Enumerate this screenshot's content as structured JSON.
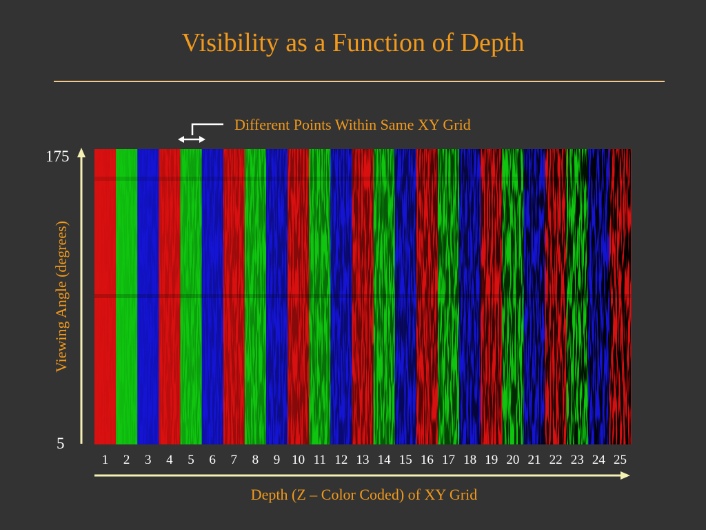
{
  "slide": {
    "title": "Visibility as a Function of Depth",
    "annotation": "Different Points Within Same XY Grid"
  },
  "chart_data": {
    "type": "heatmap",
    "title": "Visibility as a Function of Depth",
    "xlabel": "Depth (Z – Color Coded) of XY Grid",
    "ylabel": "Viewing Angle (degrees)",
    "y_tick_labels": [
      "5",
      "175"
    ],
    "ylim": [
      5,
      175
    ],
    "x_tick_labels": [
      "1",
      "2",
      "3",
      "4",
      "5",
      "6",
      "7",
      "8",
      "9",
      "10",
      "11",
      "12",
      "13",
      "14",
      "15",
      "16",
      "17",
      "18",
      "19",
      "20",
      "21",
      "22",
      "23",
      "24",
      "25"
    ],
    "categories": [
      1,
      2,
      3,
      4,
      5,
      6,
      7,
      8,
      9,
      10,
      11,
      12,
      13,
      14,
      15,
      16,
      17,
      18,
      19,
      20,
      21,
      22,
      23,
      24,
      25
    ],
    "band_colors": [
      "red",
      "green",
      "blue",
      "red",
      "green",
      "blue",
      "red",
      "green",
      "blue",
      "red",
      "green",
      "blue",
      "red",
      "green",
      "blue",
      "red",
      "green",
      "blue",
      "red",
      "green",
      "blue",
      "red",
      "green",
      "blue",
      "red"
    ],
    "color_hex": {
      "red": "#d81010",
      "green": "#10c510",
      "blue": "#1414d2"
    },
    "grid": false,
    "legend": "none"
  }
}
